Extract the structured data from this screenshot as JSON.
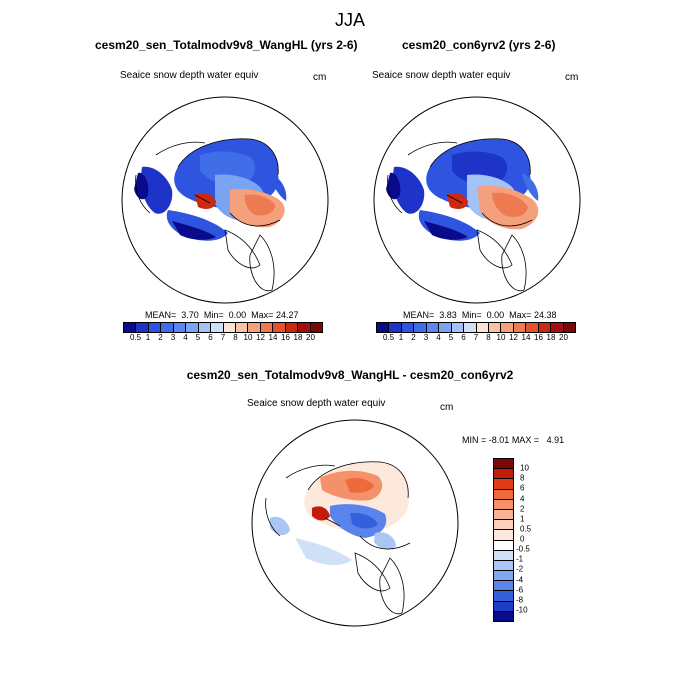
{
  "season": "JJA",
  "variable_label": "Seaice snow depth water equiv",
  "units": "cm",
  "panels": [
    {
      "title": "cesm20_sen_Totalmodv9v8_WangHL (yrs 2-6)",
      "mean": "3.70",
      "min": "0.00",
      "max": "24.27"
    },
    {
      "title": "cesm20_con6yrv2 (yrs 2-6)",
      "mean": "3.83",
      "min": "0.00",
      "max": "24.38"
    }
  ],
  "stat_labels": {
    "mean": "MEAN=",
    "min": "Min=",
    "max": "Max="
  },
  "diff": {
    "title": "cesm20_sen_Totalmodv9v8_WangHL - cesm20_con6yrv2",
    "min_label": "MIN =",
    "min": "-8.01",
    "max_label": "MAX =",
    "max": "4.91"
  },
  "colorbar_abs": {
    "labels": [
      "0.5",
      "1",
      "2",
      "3",
      "4",
      "5",
      "6",
      "7",
      "8",
      "10",
      "12",
      "14",
      "16",
      "18",
      "20"
    ],
    "colors": [
      "#0a0a8c",
      "#1e34c8",
      "#2f55e0",
      "#3f6ee8",
      "#5a88f0",
      "#7aa3f2",
      "#a3c2f5",
      "#cfe0f7",
      "#fde3d4",
      "#f8c4a6",
      "#f4a07c",
      "#ee7a52",
      "#e4522e",
      "#cc2a10",
      "#a50f0f",
      "#7a0808"
    ]
  },
  "colorbar_diff": {
    "labels": [
      "10",
      "8",
      "6",
      "4",
      "2",
      "1",
      "0.5",
      "0",
      "-0.5",
      "-1",
      "-2",
      "-4",
      "-6",
      "-8",
      "-10"
    ],
    "colors": [
      "#7a0808",
      "#c41a0a",
      "#e03a16",
      "#ee6a3c",
      "#f4906a",
      "#f8b395",
      "#fbd0bd",
      "#fde8dc",
      "#ffffff",
      "#cfe0f7",
      "#a9c6f5",
      "#82a6f2",
      "#5a84ec",
      "#3560dc",
      "#1f3cc4",
      "#0a0a8c"
    ]
  }
}
